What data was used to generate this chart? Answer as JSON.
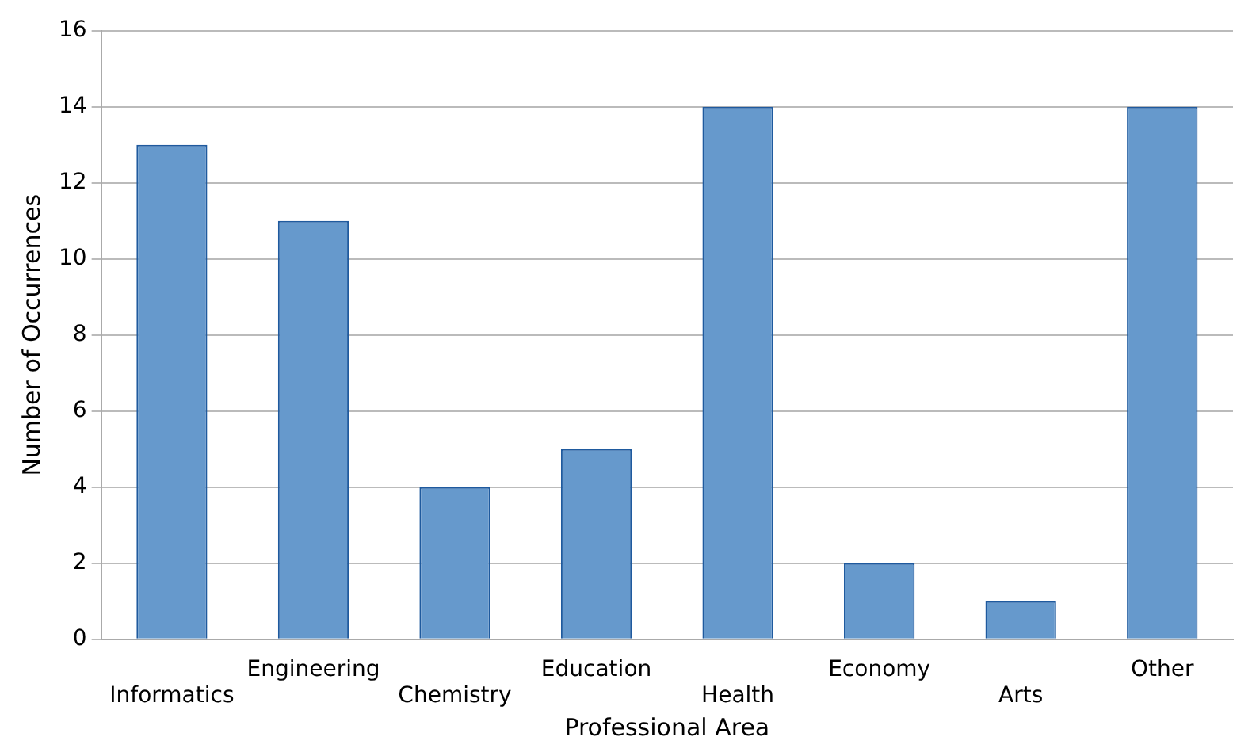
{
  "chart_data": {
    "type": "bar",
    "xlabel": "Professional Area",
    "ylabel": "Number of Occurrences",
    "categories": [
      "Informatics",
      "Engineering",
      "Chemistry",
      "Education",
      "Health",
      "Economy",
      "Arts",
      "Other"
    ],
    "series": [
      {
        "color": "#6699cc",
        "values": [
          13,
          11,
          4,
          5,
          14,
          2,
          1,
          14
        ]
      }
    ],
    "ylim": [
      0,
      16
    ],
    "yticks": [
      0,
      2,
      4,
      6,
      8,
      10,
      12,
      14,
      16
    ],
    "grid": "y",
    "legend": false
  }
}
